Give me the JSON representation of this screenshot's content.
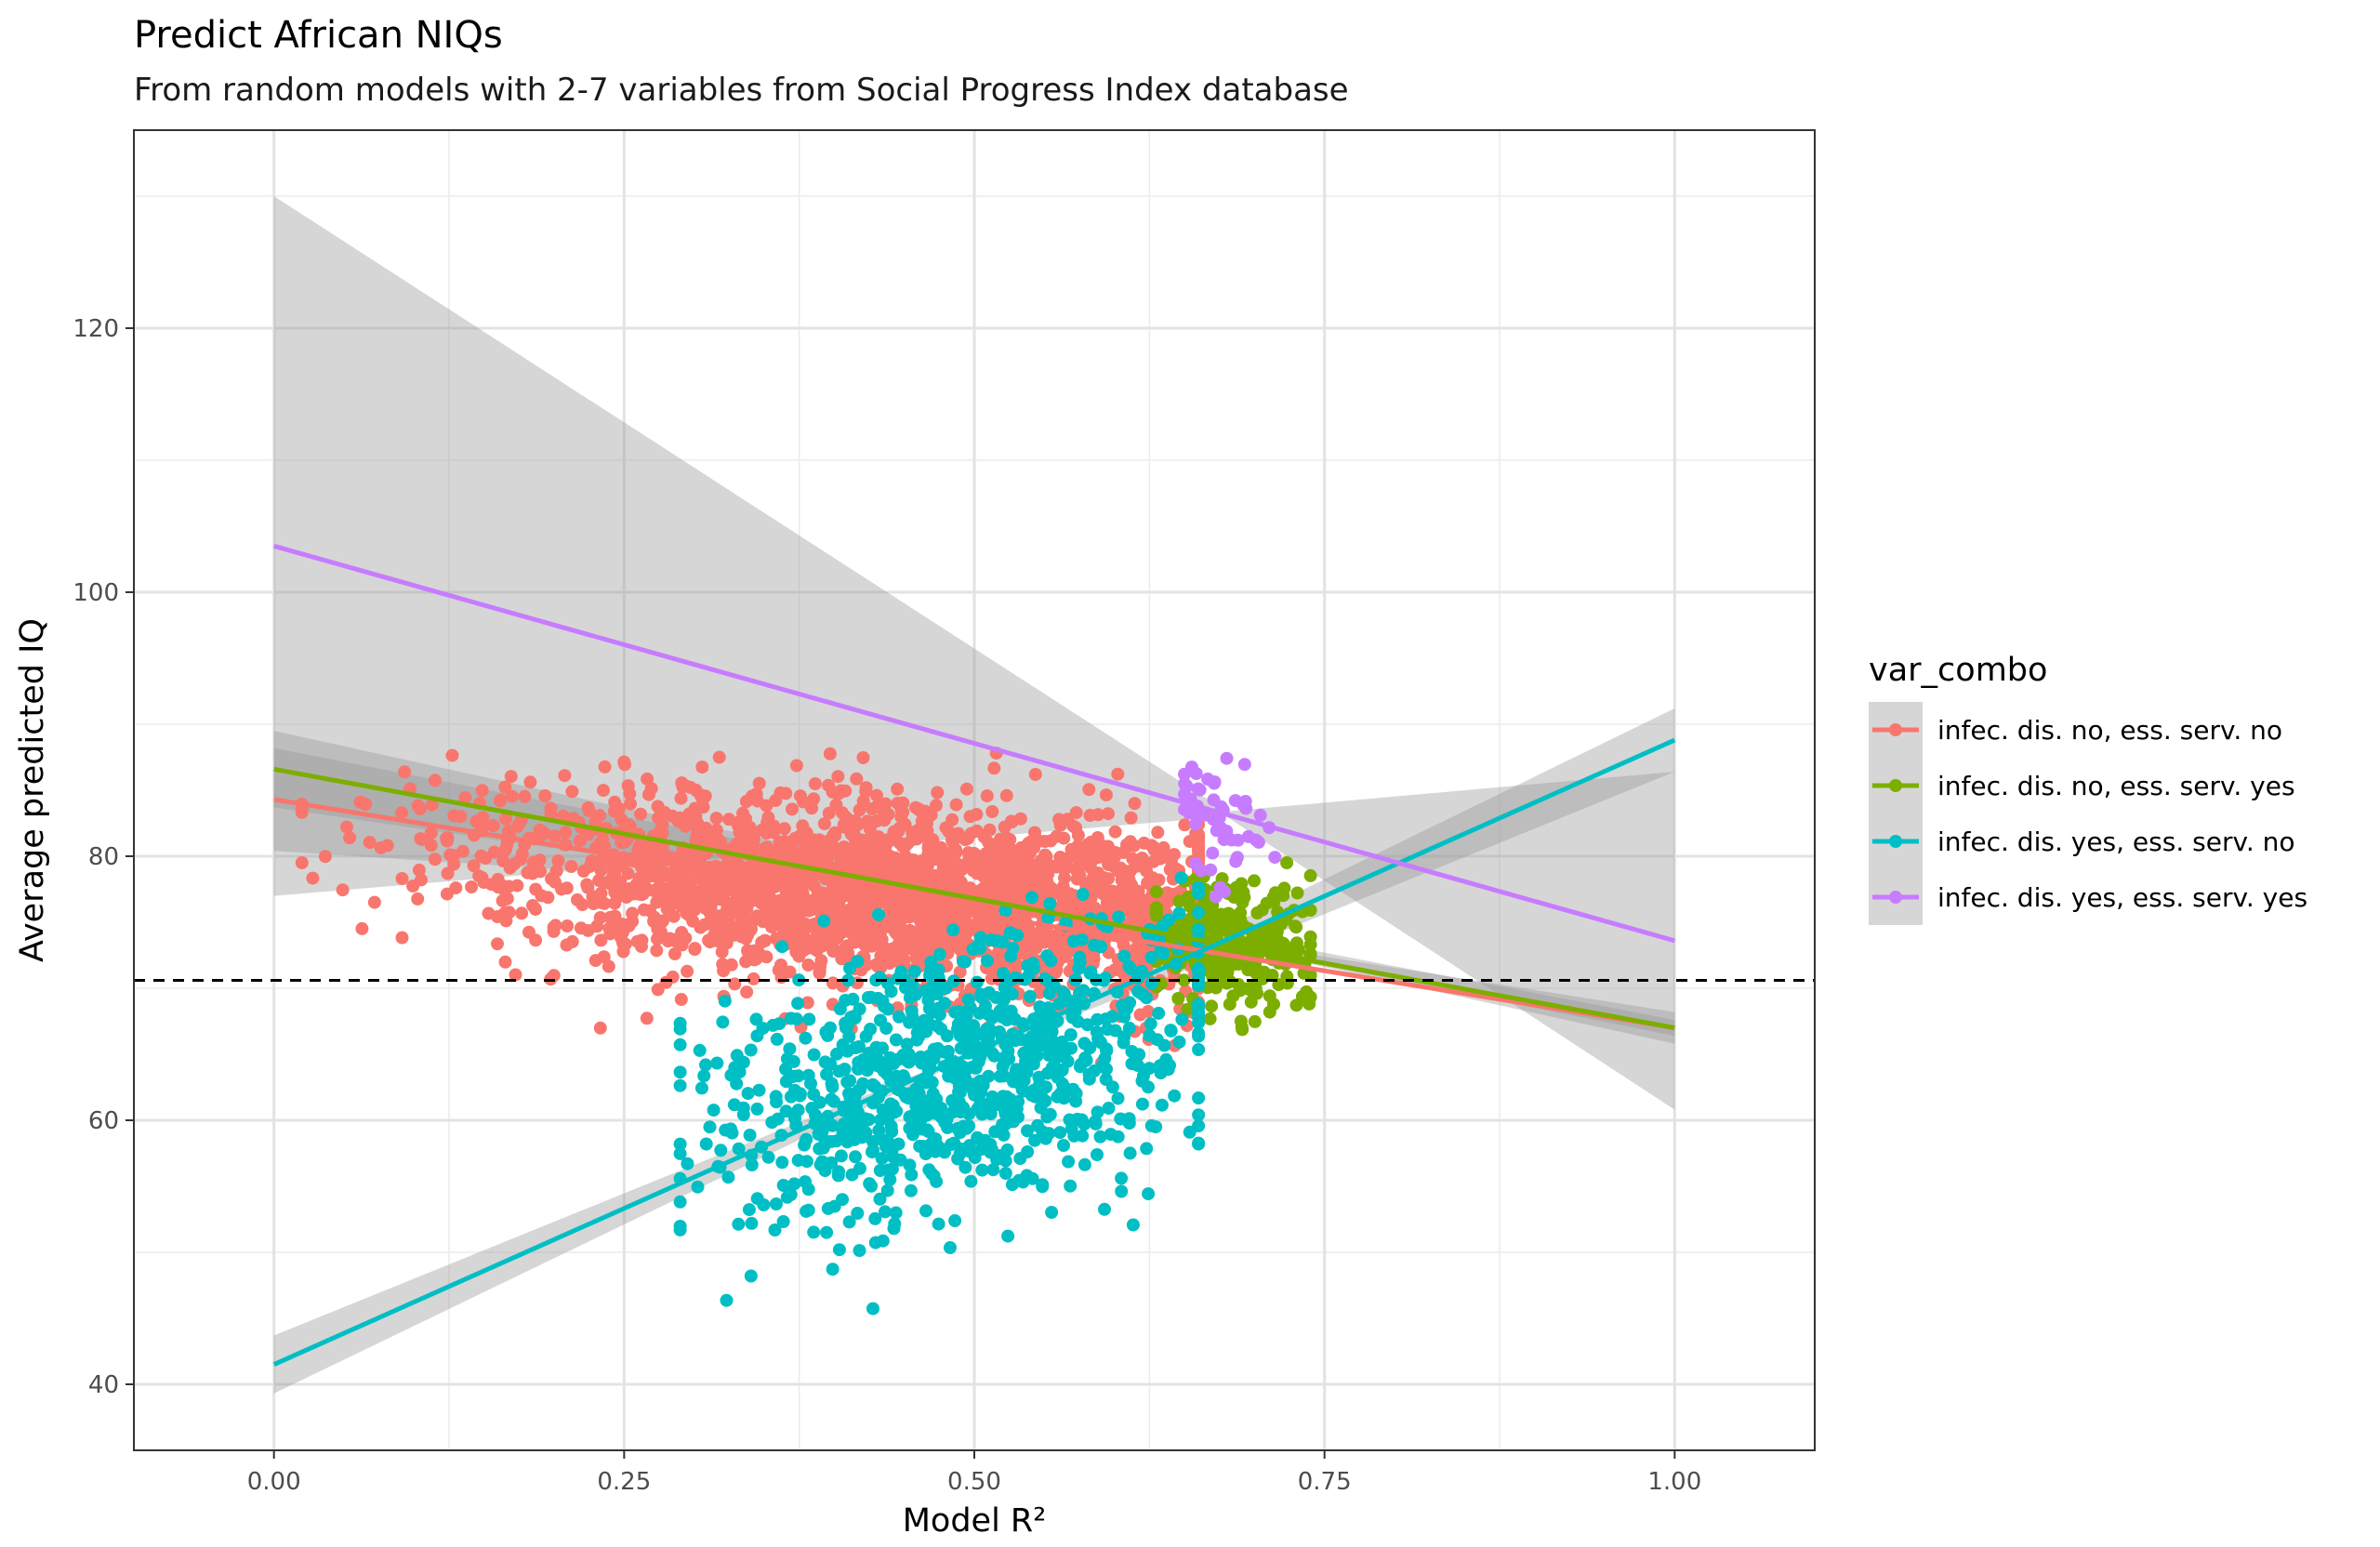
{
  "chart_data": {
    "type": "scatter",
    "title": "Predict African NIQs",
    "subtitle": "From random models with 2-7 variables from Social Progress Index database",
    "xlabel": "Model R²",
    "ylabel": "Average predicted IQ",
    "xlim": [
      -0.1,
      1.1
    ],
    "ylim": [
      35,
      135
    ],
    "x_ticks": [
      0.0,
      0.25,
      0.5,
      0.75,
      1.0
    ],
    "x_tick_labels": [
      "0.00",
      "0.25",
      "0.50",
      "0.75",
      "1.00"
    ],
    "y_ticks": [
      40,
      60,
      80,
      100,
      120
    ],
    "y_tick_labels": [
      "40",
      "60",
      "80",
      "100",
      "120"
    ],
    "grid": true,
    "legend_title": "var_combo",
    "legend_position": "right",
    "reference_line": {
      "y": 70.6,
      "style": "dashed",
      "color": "#000000"
    },
    "series": [
      {
        "name": "infec. dis. no, ess. serv. no",
        "color": "#F8766D",
        "point_cloud": {
          "x_range": [
            0.02,
            0.66
          ],
          "x_center": 0.45,
          "y_center": 77.5,
          "y_spread": 3.5,
          "count": 2600
        },
        "fit": {
          "x": [
            0.0,
            1.0
          ],
          "y": [
            84.3,
            67.0
          ]
        },
        "ci": {
          "x": [
            0.0,
            0.5,
            1.0
          ],
          "lower": [
            80.4,
            77.0,
            66.4
          ],
          "upper": [
            88.2,
            77.8,
            67.6
          ]
        }
      },
      {
        "name": "infec. dis. no, ess. serv. yes",
        "color": "#7CAE00",
        "point_cloud": {
          "x_range": [
            0.63,
            0.74
          ],
          "x_center": 0.685,
          "y_center": 73.0,
          "y_spread": 2.5,
          "count": 300
        },
        "fit": {
          "x": [
            0.0,
            1.0
          ],
          "y": [
            86.6,
            67.0
          ]
        },
        "ci": {
          "x": [
            0.0,
            0.69,
            1.0
          ],
          "lower": [
            83.7,
            73.0,
            65.8
          ],
          "upper": [
            89.5,
            73.4,
            68.2
          ]
        }
      },
      {
        "name": "infec. dis. yes, ess. serv. no",
        "color": "#00BFC4",
        "point_cloud": {
          "x_range": [
            0.29,
            0.66
          ],
          "x_center": 0.49,
          "y_center": 62.5,
          "y_spread": 5.0,
          "count": 900
        },
        "fit": {
          "x": [
            0.0,
            1.0
          ],
          "y": [
            41.5,
            88.8
          ]
        },
        "ci": {
          "x": [
            0.0,
            0.49,
            1.0
          ],
          "lower": [
            39.3,
            64.4,
            86.4
          ],
          "upper": [
            43.7,
            64.8,
            91.2
          ]
        }
      },
      {
        "name": "infec. dis. yes, ess. serv. yes",
        "color": "#C77CFF",
        "point_cloud": {
          "x_range": [
            0.65,
            0.72
          ],
          "x_center": 0.675,
          "y_center": 83.0,
          "y_spread": 2.5,
          "count": 55
        },
        "fit": {
          "x": [
            0.0,
            1.0
          ],
          "y": [
            103.5,
            73.6
          ]
        },
        "ci": {
          "x": [
            0.0,
            0.68,
            1.0
          ],
          "lower": [
            77.0,
            83.0,
            60.8
          ],
          "upper": [
            130.0,
            83.4,
            86.4
          ]
        }
      }
    ]
  }
}
